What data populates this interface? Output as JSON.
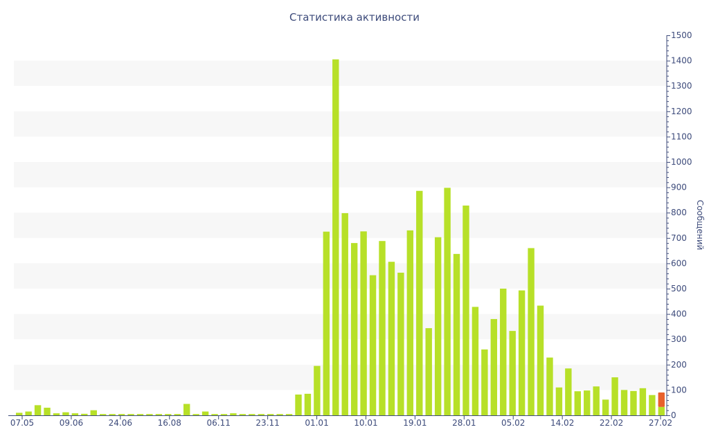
{
  "chart_data": {
    "type": "bar",
    "title": "Статистика активности",
    "ylabel": "Сообщений",
    "ylim": [
      0,
      1500
    ],
    "y_ticks": [
      0,
      100,
      200,
      300,
      400,
      500,
      600,
      700,
      800,
      900,
      1000,
      1100,
      1200,
      1300,
      1400,
      1500
    ],
    "y_axis_side": "right",
    "grid": "alternating horizontal bands",
    "x_tick_labels": [
      "07.05",
      "09.06",
      "24.06",
      "16.08",
      "06.11",
      "23.11",
      "01.01",
      "10.01",
      "19.01",
      "28.01",
      "05.02",
      "14.02",
      "22.02",
      "27.02"
    ],
    "values": [
      10,
      15,
      40,
      30,
      8,
      12,
      8,
      6,
      20,
      5,
      5,
      5,
      5,
      5,
      5,
      5,
      5,
      5,
      45,
      5,
      15,
      5,
      5,
      8,
      5,
      5,
      5,
      5,
      5,
      5,
      82,
      85,
      195,
      725,
      1405,
      798,
      680,
      726,
      553,
      688,
      606,
      563,
      730,
      886,
      344,
      703,
      898,
      637,
      828,
      428,
      260,
      380,
      500,
      333,
      493,
      660,
      433,
      228,
      110,
      185,
      95,
      98,
      114,
      62,
      150,
      100,
      96,
      107,
      80,
      33
    ],
    "current_value": 90,
    "colors": {
      "bar": "#b7e028",
      "current": "#e8612c",
      "axis": "#3c4a7a",
      "band": "#f7f7f7"
    }
  }
}
